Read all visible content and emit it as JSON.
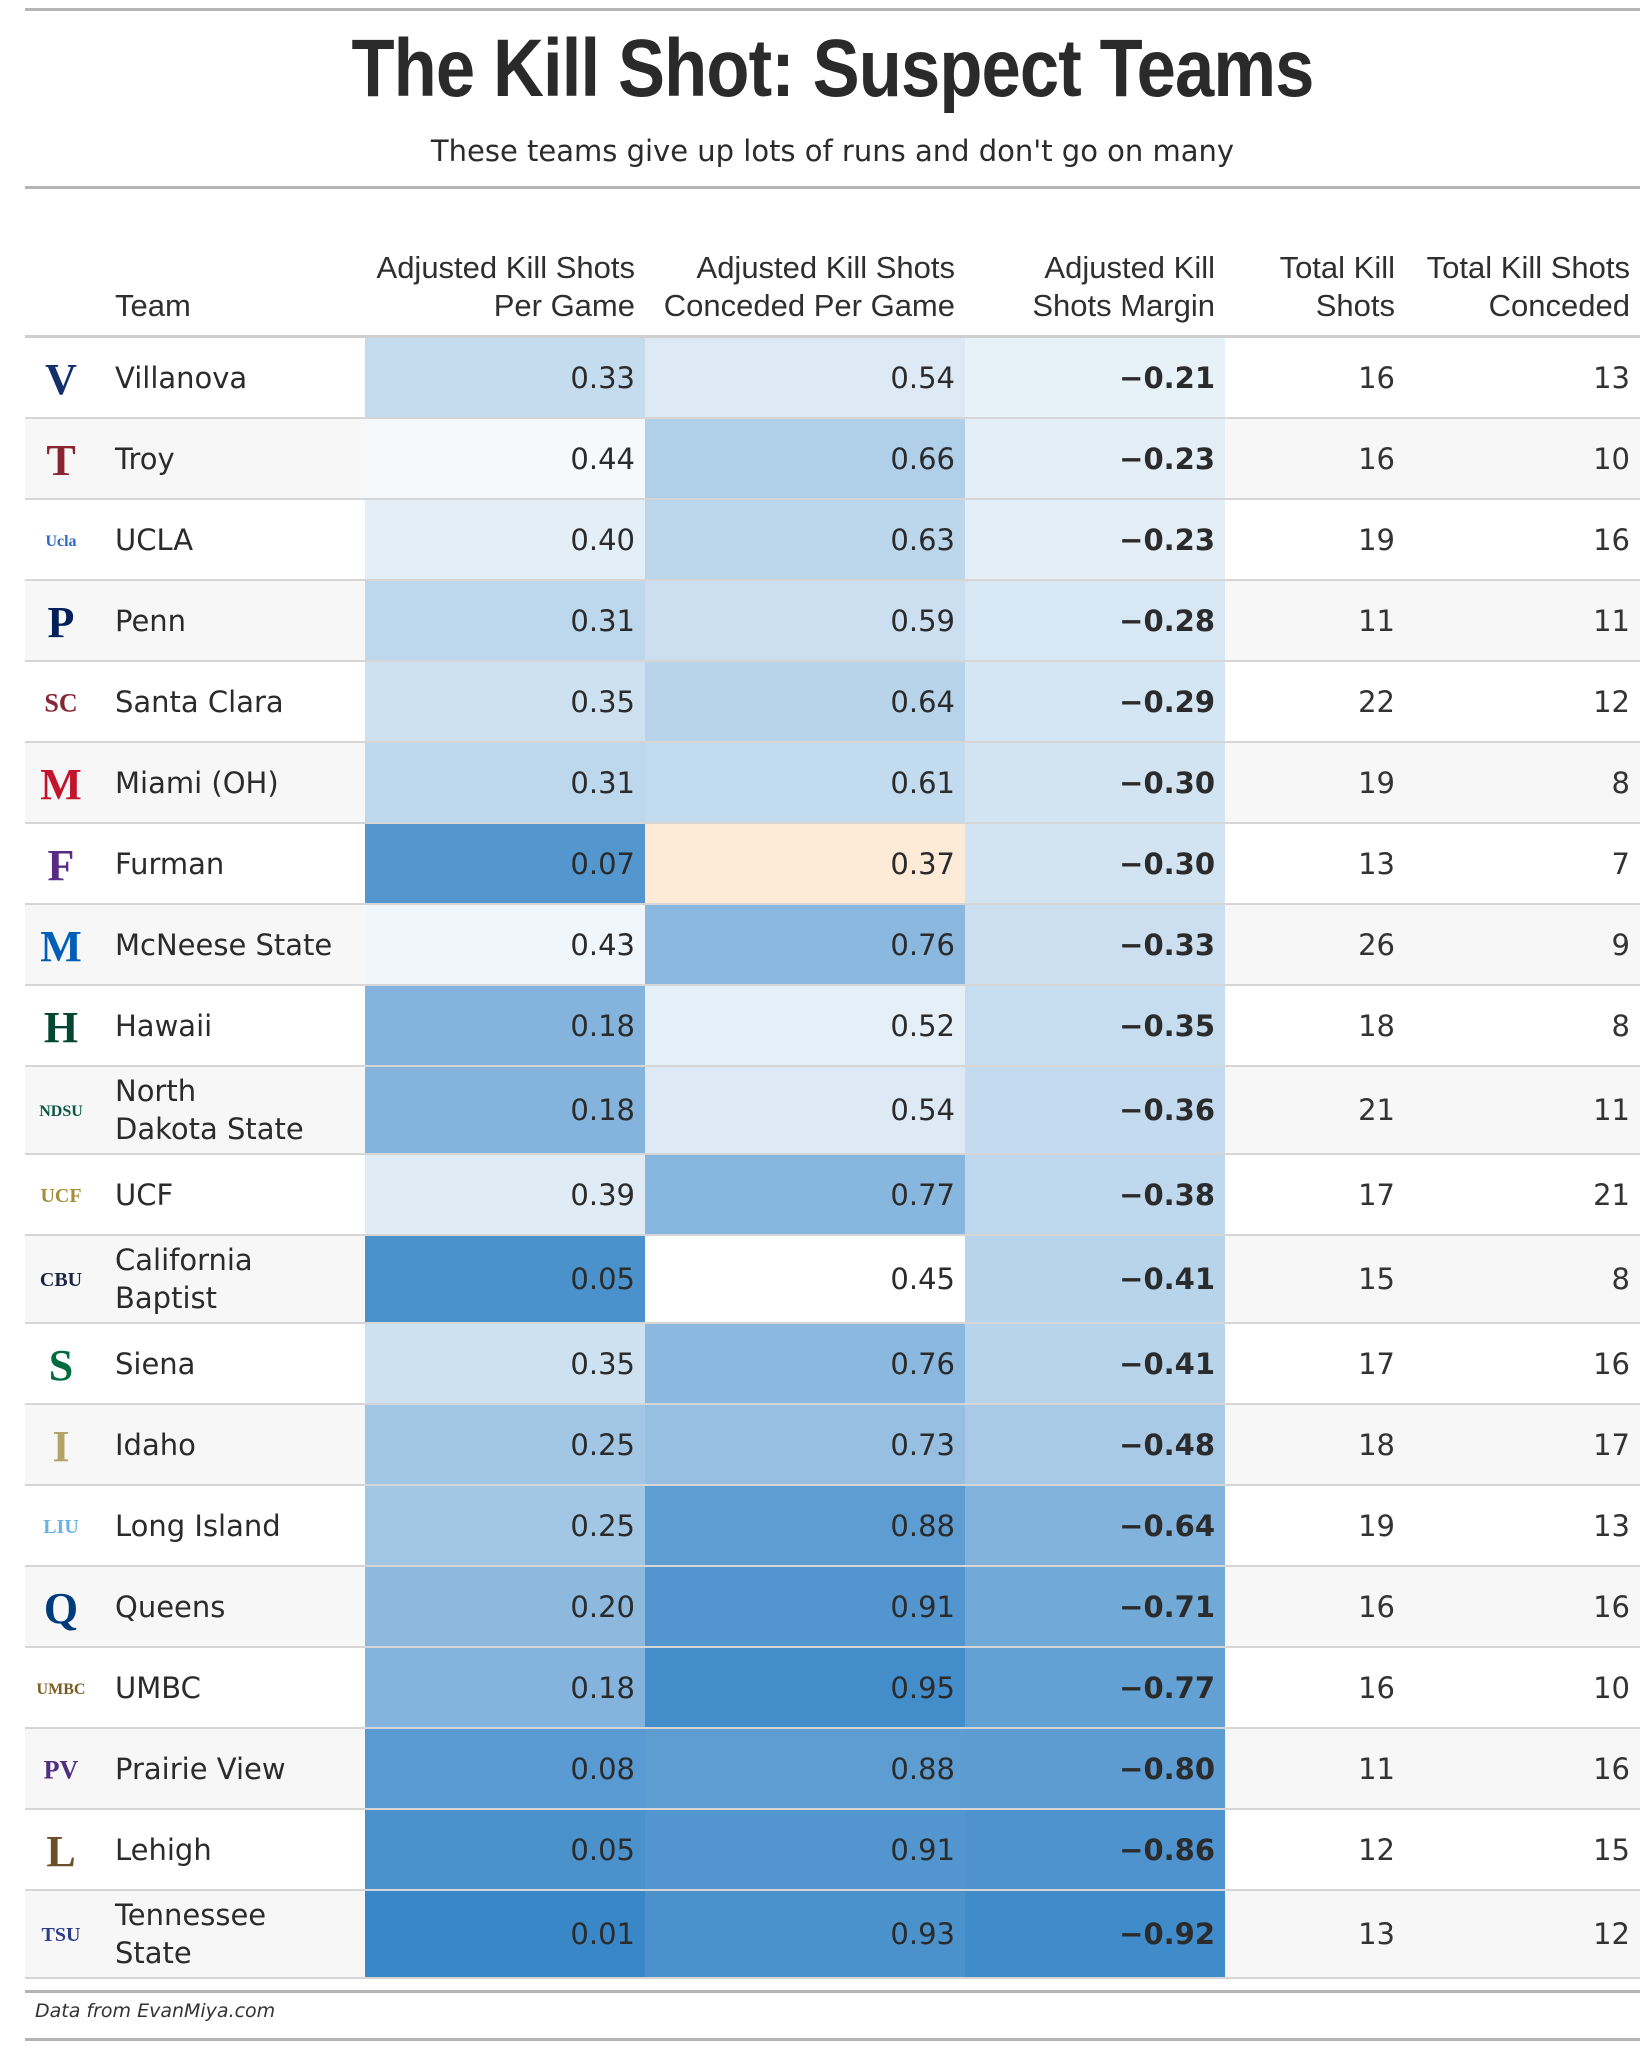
{
  "title": "The Kill Shot: Suspect Teams",
  "subtitle": "These teams give up lots of runs and don't go on many",
  "source": "Data from EvanMiya.com",
  "columns": {
    "team": "Team",
    "adj_per_game": "Adjusted Kill Shots Per Game",
    "adj_conceded": "Adjusted Kill Shots Conceded Per Game",
    "adj_margin": "Adjusted Kill Shots Margin",
    "total": "Total Kill Shots",
    "total_conceded": "Total Kill Shots Conceded"
  },
  "colors": {
    "cold_high": "#3a87c8",
    "mid": "#ffffff",
    "warm": "#fde9d4"
  },
  "chart_data": {
    "type": "table",
    "title": "The Kill Shot: Suspect Teams",
    "rows": [
      {
        "team": "Villanova",
        "logo": "villanova-logo",
        "adj_per_game": "0.33",
        "adj_conceded": "0.54",
        "adj_margin": "−0.21",
        "total": "16",
        "total_conceded": "13"
      },
      {
        "team": "Troy",
        "logo": "troy-logo",
        "adj_per_game": "0.44",
        "adj_conceded": "0.66",
        "adj_margin": "−0.23",
        "total": "16",
        "total_conceded": "10"
      },
      {
        "team": "UCLA",
        "logo": "ucla-logo",
        "adj_per_game": "0.40",
        "adj_conceded": "0.63",
        "adj_margin": "−0.23",
        "total": "19",
        "total_conceded": "16"
      },
      {
        "team": "Penn",
        "logo": "penn-logo",
        "adj_per_game": "0.31",
        "adj_conceded": "0.59",
        "adj_margin": "−0.28",
        "total": "11",
        "total_conceded": "11"
      },
      {
        "team": "Santa Clara",
        "logo": "santa-clara-logo",
        "adj_per_game": "0.35",
        "adj_conceded": "0.64",
        "adj_margin": "−0.29",
        "total": "22",
        "total_conceded": "12"
      },
      {
        "team": "Miami (OH)",
        "logo": "miami-oh-logo",
        "adj_per_game": "0.31",
        "adj_conceded": "0.61",
        "adj_margin": "−0.30",
        "total": "19",
        "total_conceded": "8"
      },
      {
        "team": "Furman",
        "logo": "furman-logo",
        "adj_per_game": "0.07",
        "adj_conceded": "0.37",
        "adj_margin": "−0.30",
        "total": "13",
        "total_conceded": "7"
      },
      {
        "team": "McNeese State",
        "logo": "mcneese-logo",
        "adj_per_game": "0.43",
        "adj_conceded": "0.76",
        "adj_margin": "−0.33",
        "total": "26",
        "total_conceded": "9"
      },
      {
        "team": "Hawaii",
        "logo": "hawaii-logo",
        "adj_per_game": "0.18",
        "adj_conceded": "0.52",
        "adj_margin": "−0.35",
        "total": "18",
        "total_conceded": "8"
      },
      {
        "team": "North Dakota State",
        "logo": "ndsu-logo",
        "adj_per_game": "0.18",
        "adj_conceded": "0.54",
        "adj_margin": "−0.36",
        "total": "21",
        "total_conceded": "11"
      },
      {
        "team": "UCF",
        "logo": "ucf-logo",
        "adj_per_game": "0.39",
        "adj_conceded": "0.77",
        "adj_margin": "−0.38",
        "total": "17",
        "total_conceded": "21"
      },
      {
        "team": "California Baptist",
        "logo": "cbu-logo",
        "adj_per_game": "0.05",
        "adj_conceded": "0.45",
        "adj_margin": "−0.41",
        "total": "15",
        "total_conceded": "8"
      },
      {
        "team": "Siena",
        "logo": "siena-logo",
        "adj_per_game": "0.35",
        "adj_conceded": "0.76",
        "adj_margin": "−0.41",
        "total": "17",
        "total_conceded": "16"
      },
      {
        "team": "Idaho",
        "logo": "idaho-logo",
        "adj_per_game": "0.25",
        "adj_conceded": "0.73",
        "adj_margin": "−0.48",
        "total": "18",
        "total_conceded": "17"
      },
      {
        "team": "Long Island",
        "logo": "liu-logo",
        "adj_per_game": "0.25",
        "adj_conceded": "0.88",
        "adj_margin": "−0.64",
        "total": "19",
        "total_conceded": "13"
      },
      {
        "team": "Queens",
        "logo": "queens-logo",
        "adj_per_game": "0.20",
        "adj_conceded": "0.91",
        "adj_margin": "−0.71",
        "total": "16",
        "total_conceded": "16"
      },
      {
        "team": "UMBC",
        "logo": "umbc-logo",
        "adj_per_game": "0.18",
        "adj_conceded": "0.95",
        "adj_margin": "−0.77",
        "total": "16",
        "total_conceded": "10"
      },
      {
        "team": "Prairie View",
        "logo": "pvamu-logo",
        "adj_per_game": "0.08",
        "adj_conceded": "0.88",
        "adj_margin": "−0.80",
        "total": "11",
        "total_conceded": "16"
      },
      {
        "team": "Lehigh",
        "logo": "lehigh-logo",
        "adj_per_game": "0.05",
        "adj_conceded": "0.91",
        "adj_margin": "−0.86",
        "total": "12",
        "total_conceded": "15"
      },
      {
        "team": "Tennessee State",
        "logo": "tsu-logo",
        "adj_per_game": "0.01",
        "adj_conceded": "0.93",
        "adj_margin": "−0.92",
        "total": "13",
        "total_conceded": "12"
      }
    ]
  }
}
